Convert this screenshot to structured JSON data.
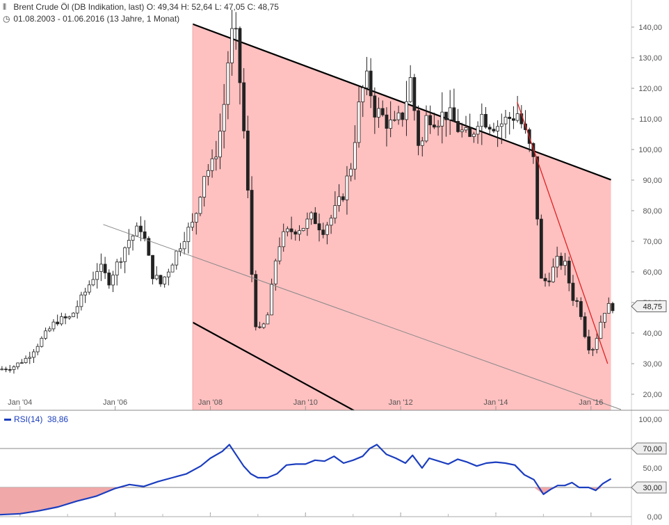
{
  "header": {
    "instrument_line": "Brent Crude Öl (DB Indikation, last)  O: 49,34  H: 52,64  L: 47,05  C: 48,75",
    "range_line": "01.08.2003 - 01.06.2016 (13 Jahre, 1 Monat)",
    "instrument_icon": "candlestick-icon",
    "range_icon": "clock-icon"
  },
  "chart_data": [
    {
      "type": "candlestick",
      "title": "Brent Crude Öl (DB Indikation, last)",
      "ohlc_last": {
        "open": "49,34",
        "high": "52,64",
        "low": "47,05",
        "close": "48,75"
      },
      "date_range": "01.08.2003 - 01.06.2016 (13 Jahre, 1 Monat)",
      "x_range": [
        2003.58,
        2016.42
      ],
      "ylim": [
        15,
        145
      ],
      "y_ticks": [
        "20,00",
        "30,00",
        "40,00",
        "50,00",
        "60,00",
        "70,00",
        "80,00",
        "90,00",
        "100,00",
        "110,00",
        "120,00",
        "130,00",
        "140,00"
      ],
      "x_ticks": [
        {
          "label": "Jan '04",
          "x": 2004.0
        },
        {
          "label": "Jan '06",
          "x": 2006.0
        },
        {
          "label": "Jan '08",
          "x": 2008.0
        },
        {
          "label": "Jan '10",
          "x": 2010.0
        },
        {
          "label": "Jan '12",
          "x": 2012.0
        },
        {
          "label": "Jan '14",
          "x": 2014.0
        },
        {
          "label": "Jan '16",
          "x": 2016.0
        }
      ],
      "last_price_label": "48,75",
      "last_price": 48.75,
      "grid": false,
      "price_path": [
        [
          2003.58,
          28
        ],
        [
          2003.9,
          29
        ],
        [
          2004.2,
          32
        ],
        [
          2004.5,
          38
        ],
        [
          2004.8,
          44
        ],
        [
          2005.1,
          45
        ],
        [
          2005.4,
          53
        ],
        [
          2005.7,
          62
        ],
        [
          2005.9,
          57
        ],
        [
          2006.1,
          63
        ],
        [
          2006.3,
          70
        ],
        [
          2006.6,
          75
        ],
        [
          2006.8,
          60
        ],
        [
          2007.0,
          56
        ],
        [
          2007.2,
          62
        ],
        [
          2007.5,
          72
        ],
        [
          2007.7,
          76
        ],
        [
          2007.9,
          92
        ],
        [
          2008.1,
          95
        ],
        [
          2008.3,
          110
        ],
        [
          2008.45,
          135
        ],
        [
          2008.55,
          140
        ],
        [
          2008.65,
          125
        ],
        [
          2008.8,
          95
        ],
        [
          2008.9,
          62
        ],
        [
          2009.0,
          43
        ],
        [
          2009.1,
          40
        ],
        [
          2009.25,
          46
        ],
        [
          2009.45,
          68
        ],
        [
          2009.6,
          72
        ],
        [
          2009.8,
          74
        ],
        [
          2010.0,
          75
        ],
        [
          2010.2,
          78
        ],
        [
          2010.4,
          74
        ],
        [
          2010.6,
          78
        ],
        [
          2010.8,
          84
        ],
        [
          2011.0,
          95
        ],
        [
          2011.2,
          118
        ],
        [
          2011.35,
          123
        ],
        [
          2011.5,
          113
        ],
        [
          2011.7,
          110
        ],
        [
          2011.9,
          107
        ],
        [
          2012.1,
          112
        ],
        [
          2012.25,
          123
        ],
        [
          2012.45,
          98
        ],
        [
          2012.6,
          112
        ],
        [
          2012.8,
          110
        ],
        [
          2013.0,
          112
        ],
        [
          2013.3,
          106
        ],
        [
          2013.5,
          103
        ],
        [
          2013.7,
          112
        ],
        [
          2013.9,
          109
        ],
        [
          2014.1,
          108
        ],
        [
          2014.3,
          110
        ],
        [
          2014.5,
          112
        ],
        [
          2014.7,
          103
        ],
        [
          2014.85,
          95
        ],
        [
          2015.0,
          56
        ],
        [
          2015.15,
          58
        ],
        [
          2015.35,
          64
        ],
        [
          2015.5,
          62
        ],
        [
          2015.65,
          52
        ],
        [
          2015.8,
          49
        ],
        [
          2015.95,
          37
        ],
        [
          2016.05,
          34
        ],
        [
          2016.15,
          38
        ],
        [
          2016.3,
          47
        ],
        [
          2016.42,
          48.75
        ]
      ],
      "regression_channel": {
        "start": 2007.63,
        "end": 2013.0,
        "upper_start": 141,
        "upper_slope": -5.79,
        "lower_start": 43.5,
        "lower_slope": -8.5,
        "fill": "#ffc0c0",
        "line_color": "#000000"
      },
      "trend_lines": [
        {
          "x1": 2005.75,
          "y1": 75.5,
          "x2": 2016.63,
          "y2": 15,
          "color": "#888888"
        },
        {
          "x1": 2014.45,
          "y1": 115.5,
          "x2": 2016.35,
          "y2": 30,
          "color": "#dd2222"
        }
      ]
    },
    {
      "type": "line",
      "series": [
        {
          "name": "RSI(14)",
          "color": "#1a3dbf"
        }
      ],
      "last_value_label": "38,86",
      "ylim": [
        0,
        100
      ],
      "y_ticks": [
        "0,00",
        "30,00",
        "50,00",
        "70,00",
        "100,00"
      ],
      "levels": [
        {
          "label": "70,00",
          "value": 70
        },
        {
          "label": "30,00",
          "value": 30
        }
      ],
      "oversold_fill": "#f0a8a8",
      "x": [
        2003.58,
        2004.0,
        2004.4,
        2004.8,
        2005.2,
        2005.6,
        2006.0,
        2006.3,
        2006.6,
        2006.9,
        2007.2,
        2007.5,
        2007.8,
        2008.0,
        2008.25,
        2008.4,
        2008.55,
        2008.7,
        2008.85,
        2009.0,
        2009.2,
        2009.4,
        2009.6,
        2009.8,
        2010.0,
        2010.2,
        2010.4,
        2010.6,
        2010.8,
        2011.0,
        2011.2,
        2011.35,
        2011.5,
        2011.7,
        2011.9,
        2012.1,
        2012.25,
        2012.45,
        2012.6,
        2012.8,
        2013.0,
        2013.2,
        2013.4,
        2013.6,
        2013.8,
        2014.0,
        2014.2,
        2014.4,
        2014.6,
        2014.8,
        2015.0,
        2015.15,
        2015.3,
        2015.45,
        2015.6,
        2015.75,
        2015.95,
        2016.1,
        2016.25,
        2016.42
      ],
      "values": [
        2,
        3,
        6,
        10,
        16,
        21,
        29,
        33,
        31,
        36,
        40,
        44,
        52,
        60,
        67,
        74,
        63,
        52,
        44,
        40,
        40,
        44,
        53,
        54,
        54,
        58,
        57,
        62,
        55,
        58,
        62,
        70,
        74,
        64,
        60,
        55,
        63,
        50,
        60,
        57,
        54,
        59,
        56,
        52,
        55,
        56,
        55,
        53,
        43,
        38,
        23,
        28,
        32,
        32,
        35,
        30,
        30,
        27,
        34,
        38.86
      ]
    }
  ]
}
